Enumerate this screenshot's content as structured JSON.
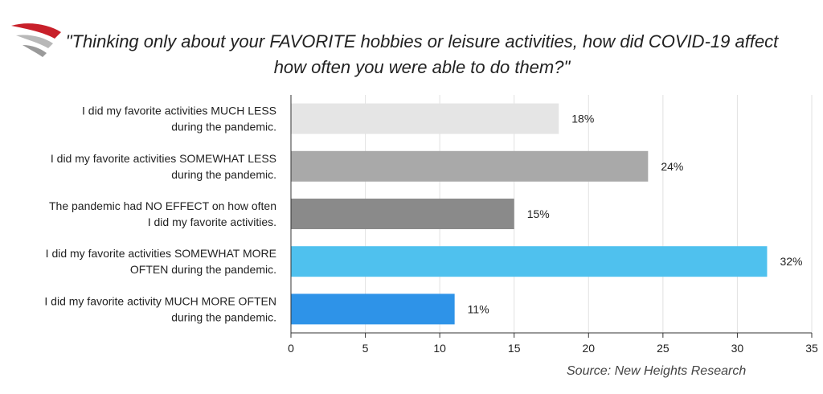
{
  "chart_data": {
    "type": "bar",
    "orientation": "horizontal",
    "title_lines": [
      "\"Thinking only about your FAVORITE hobbies or leisure activities, how did COVID-19 affect",
      "how often you were able to do them?\""
    ],
    "categories": [
      [
        "I did my favorite activities MUCH LESS",
        "during the pandemic."
      ],
      [
        "I did my favorite activities SOMEWHAT LESS",
        "during the pandemic."
      ],
      [
        "The pandemic had NO EFFECT on how often",
        "I did my favorite activities."
      ],
      [
        "I did my favorite activities SOMEWHAT MORE",
        "OFTEN during the pandemic."
      ],
      [
        "I did my favorite activity MUCH MORE OFTEN",
        "during the pandemic."
      ]
    ],
    "values": [
      18,
      24,
      15,
      32,
      11
    ],
    "value_labels": [
      "18%",
      "24%",
      "15%",
      "32%",
      "11%"
    ],
    "bar_colors": [
      "#e5e5e5",
      "#a9a9a9",
      "#8a8a8a",
      "#4fc1ee",
      "#2e93e8"
    ],
    "xlim": [
      0,
      35
    ],
    "xticks": [
      0,
      5,
      10,
      15,
      20,
      25,
      30,
      35
    ],
    "grid": true,
    "legend": "none"
  },
  "source": "Source: New Heights Research"
}
